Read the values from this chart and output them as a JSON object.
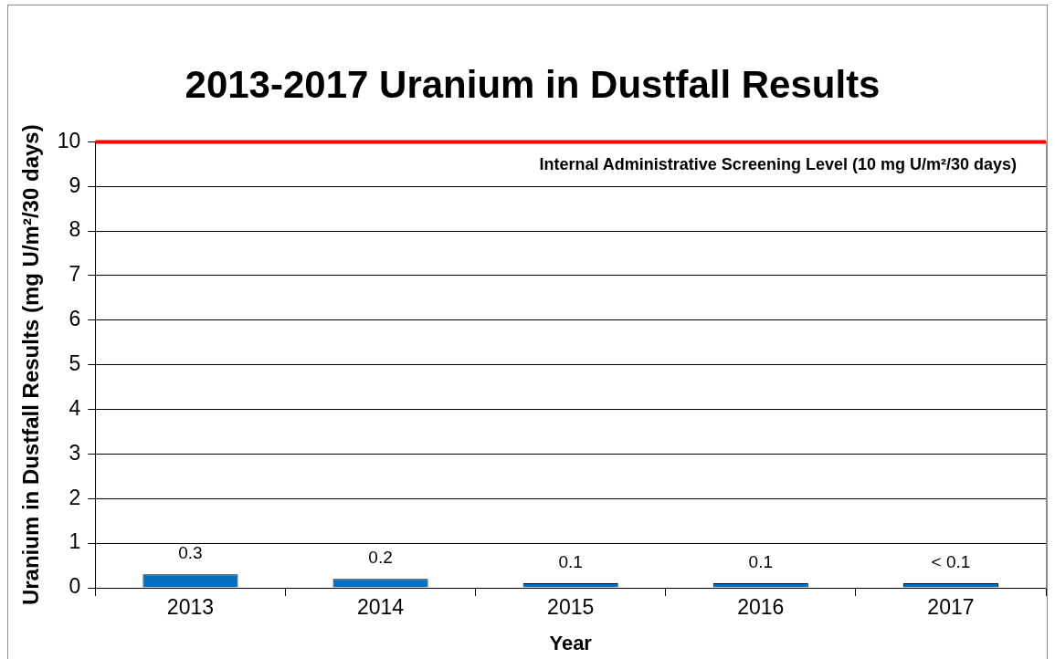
{
  "chart_data": {
    "type": "bar",
    "title": "2013-2017 Uranium in Dustfall Results",
    "xlabel": "Year",
    "ylabel": "Uranium in Dustfall Results (mg U/m²/30 days)",
    "categories": [
      "2013",
      "2014",
      "2015",
      "2016",
      "2017"
    ],
    "values": [
      0.3,
      0.2,
      0.1,
      0.1,
      0.1
    ],
    "color": "#0070c0",
    "value_labels": [
      "0.3",
      "0.2",
      "0.1",
      "0.1",
      "< 0.1"
    ],
    "ylim": [
      0,
      10
    ],
    "yticks": [
      0,
      1,
      2,
      3,
      4,
      5,
      6,
      7,
      8,
      9,
      10
    ],
    "grid": "y",
    "ref_lines": [
      {
        "axis": "y",
        "value": 10,
        "label": "Internal Administrative Screening Level (10 mg U/m²/30 days)",
        "color": "#ff0000"
      }
    ]
  }
}
